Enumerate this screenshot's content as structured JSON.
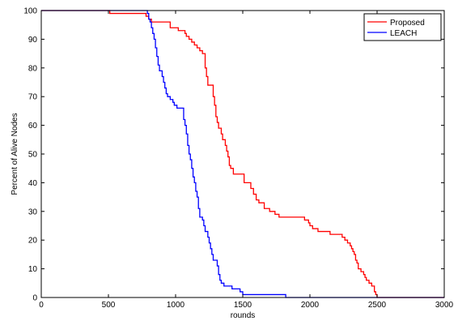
{
  "chart_data": {
    "type": "line",
    "title": "",
    "xlabel": "rounds",
    "ylabel": "Percent of Alive Nodes",
    "xlim": [
      0,
      3000
    ],
    "ylim": [
      0,
      100
    ],
    "xticks": [
      0,
      500,
      1000,
      1500,
      2000,
      2500,
      3000
    ],
    "yticks": [
      0,
      10,
      20,
      30,
      40,
      50,
      60,
      70,
      80,
      90,
      100
    ],
    "xtick_labels": [
      "0",
      "500",
      "1000",
      "1500",
      "2000",
      "2500",
      "3000"
    ],
    "ytick_labels": [
      "0",
      "10",
      "20",
      "30",
      "40",
      "50",
      "60",
      "70",
      "80",
      "90",
      "100"
    ],
    "grid": false,
    "legend_position": "top-right",
    "series": [
      {
        "name": "Proposed",
        "color": "#ff0000",
        "step": true,
        "points": [
          [
            0,
            100
          ],
          [
            500,
            100
          ],
          [
            510,
            99
          ],
          [
            750,
            99
          ],
          [
            780,
            98
          ],
          [
            800,
            97
          ],
          [
            820,
            96
          ],
          [
            900,
            96
          ],
          [
            960,
            94
          ],
          [
            1000,
            94
          ],
          [
            1020,
            93
          ],
          [
            1050,
            93
          ],
          [
            1070,
            92
          ],
          [
            1080,
            91
          ],
          [
            1100,
            90
          ],
          [
            1120,
            89
          ],
          [
            1140,
            88
          ],
          [
            1150,
            88
          ],
          [
            1160,
            87
          ],
          [
            1180,
            86
          ],
          [
            1200,
            85
          ],
          [
            1220,
            80
          ],
          [
            1230,
            77
          ],
          [
            1240,
            74
          ],
          [
            1270,
            74
          ],
          [
            1280,
            70
          ],
          [
            1290,
            67
          ],
          [
            1300,
            63
          ],
          [
            1310,
            61
          ],
          [
            1320,
            59
          ],
          [
            1340,
            57
          ],
          [
            1350,
            55
          ],
          [
            1370,
            53
          ],
          [
            1380,
            51
          ],
          [
            1390,
            49
          ],
          [
            1400,
            46
          ],
          [
            1410,
            45
          ],
          [
            1430,
            43
          ],
          [
            1490,
            43
          ],
          [
            1510,
            40
          ],
          [
            1560,
            38
          ],
          [
            1580,
            36
          ],
          [
            1600,
            34
          ],
          [
            1620,
            33
          ],
          [
            1660,
            31
          ],
          [
            1700,
            30
          ],
          [
            1740,
            29
          ],
          [
            1770,
            28
          ],
          [
            1930,
            28
          ],
          [
            1960,
            27
          ],
          [
            1990,
            26
          ],
          [
            2000,
            25
          ],
          [
            2020,
            24
          ],
          [
            2060,
            23
          ],
          [
            2130,
            23
          ],
          [
            2150,
            22
          ],
          [
            2220,
            22
          ],
          [
            2240,
            21
          ],
          [
            2260,
            20
          ],
          [
            2280,
            19
          ],
          [
            2300,
            18
          ],
          [
            2310,
            17
          ],
          [
            2320,
            16
          ],
          [
            2330,
            15
          ],
          [
            2340,
            13
          ],
          [
            2350,
            12
          ],
          [
            2360,
            10
          ],
          [
            2380,
            9
          ],
          [
            2400,
            8
          ],
          [
            2410,
            7
          ],
          [
            2420,
            6
          ],
          [
            2440,
            5
          ],
          [
            2460,
            4
          ],
          [
            2480,
            2
          ],
          [
            2490,
            1
          ],
          [
            2500,
            0
          ],
          [
            3000,
            0
          ]
        ]
      },
      {
        "name": "LEACH",
        "color": "#0000ff",
        "step": true,
        "points": [
          [
            0,
            100
          ],
          [
            775,
            100
          ],
          [
            790,
            99
          ],
          [
            800,
            97
          ],
          [
            810,
            96
          ],
          [
            820,
            94
          ],
          [
            830,
            92
          ],
          [
            840,
            90
          ],
          [
            850,
            87
          ],
          [
            860,
            84
          ],
          [
            870,
            81
          ],
          [
            880,
            79
          ],
          [
            900,
            77
          ],
          [
            910,
            75
          ],
          [
            920,
            73
          ],
          [
            930,
            71
          ],
          [
            940,
            70
          ],
          [
            960,
            69
          ],
          [
            980,
            68
          ],
          [
            990,
            67
          ],
          [
            1010,
            66
          ],
          [
            1050,
            66
          ],
          [
            1060,
            62
          ],
          [
            1070,
            60
          ],
          [
            1080,
            57
          ],
          [
            1090,
            53
          ],
          [
            1100,
            50
          ],
          [
            1110,
            48
          ],
          [
            1120,
            45
          ],
          [
            1130,
            42
          ],
          [
            1140,
            40
          ],
          [
            1150,
            37
          ],
          [
            1160,
            35
          ],
          [
            1170,
            31
          ],
          [
            1180,
            28
          ],
          [
            1200,
            27
          ],
          [
            1210,
            25
          ],
          [
            1220,
            23
          ],
          [
            1240,
            21
          ],
          [
            1250,
            19
          ],
          [
            1260,
            17
          ],
          [
            1270,
            15
          ],
          [
            1280,
            13
          ],
          [
            1300,
            13
          ],
          [
            1310,
            11
          ],
          [
            1320,
            8
          ],
          [
            1330,
            6
          ],
          [
            1340,
            5
          ],
          [
            1360,
            4
          ],
          [
            1400,
            4
          ],
          [
            1420,
            3
          ],
          [
            1470,
            3
          ],
          [
            1480,
            2
          ],
          [
            1500,
            1
          ],
          [
            1810,
            1
          ],
          [
            1820,
            0
          ],
          [
            3000,
            0
          ]
        ]
      }
    ]
  }
}
